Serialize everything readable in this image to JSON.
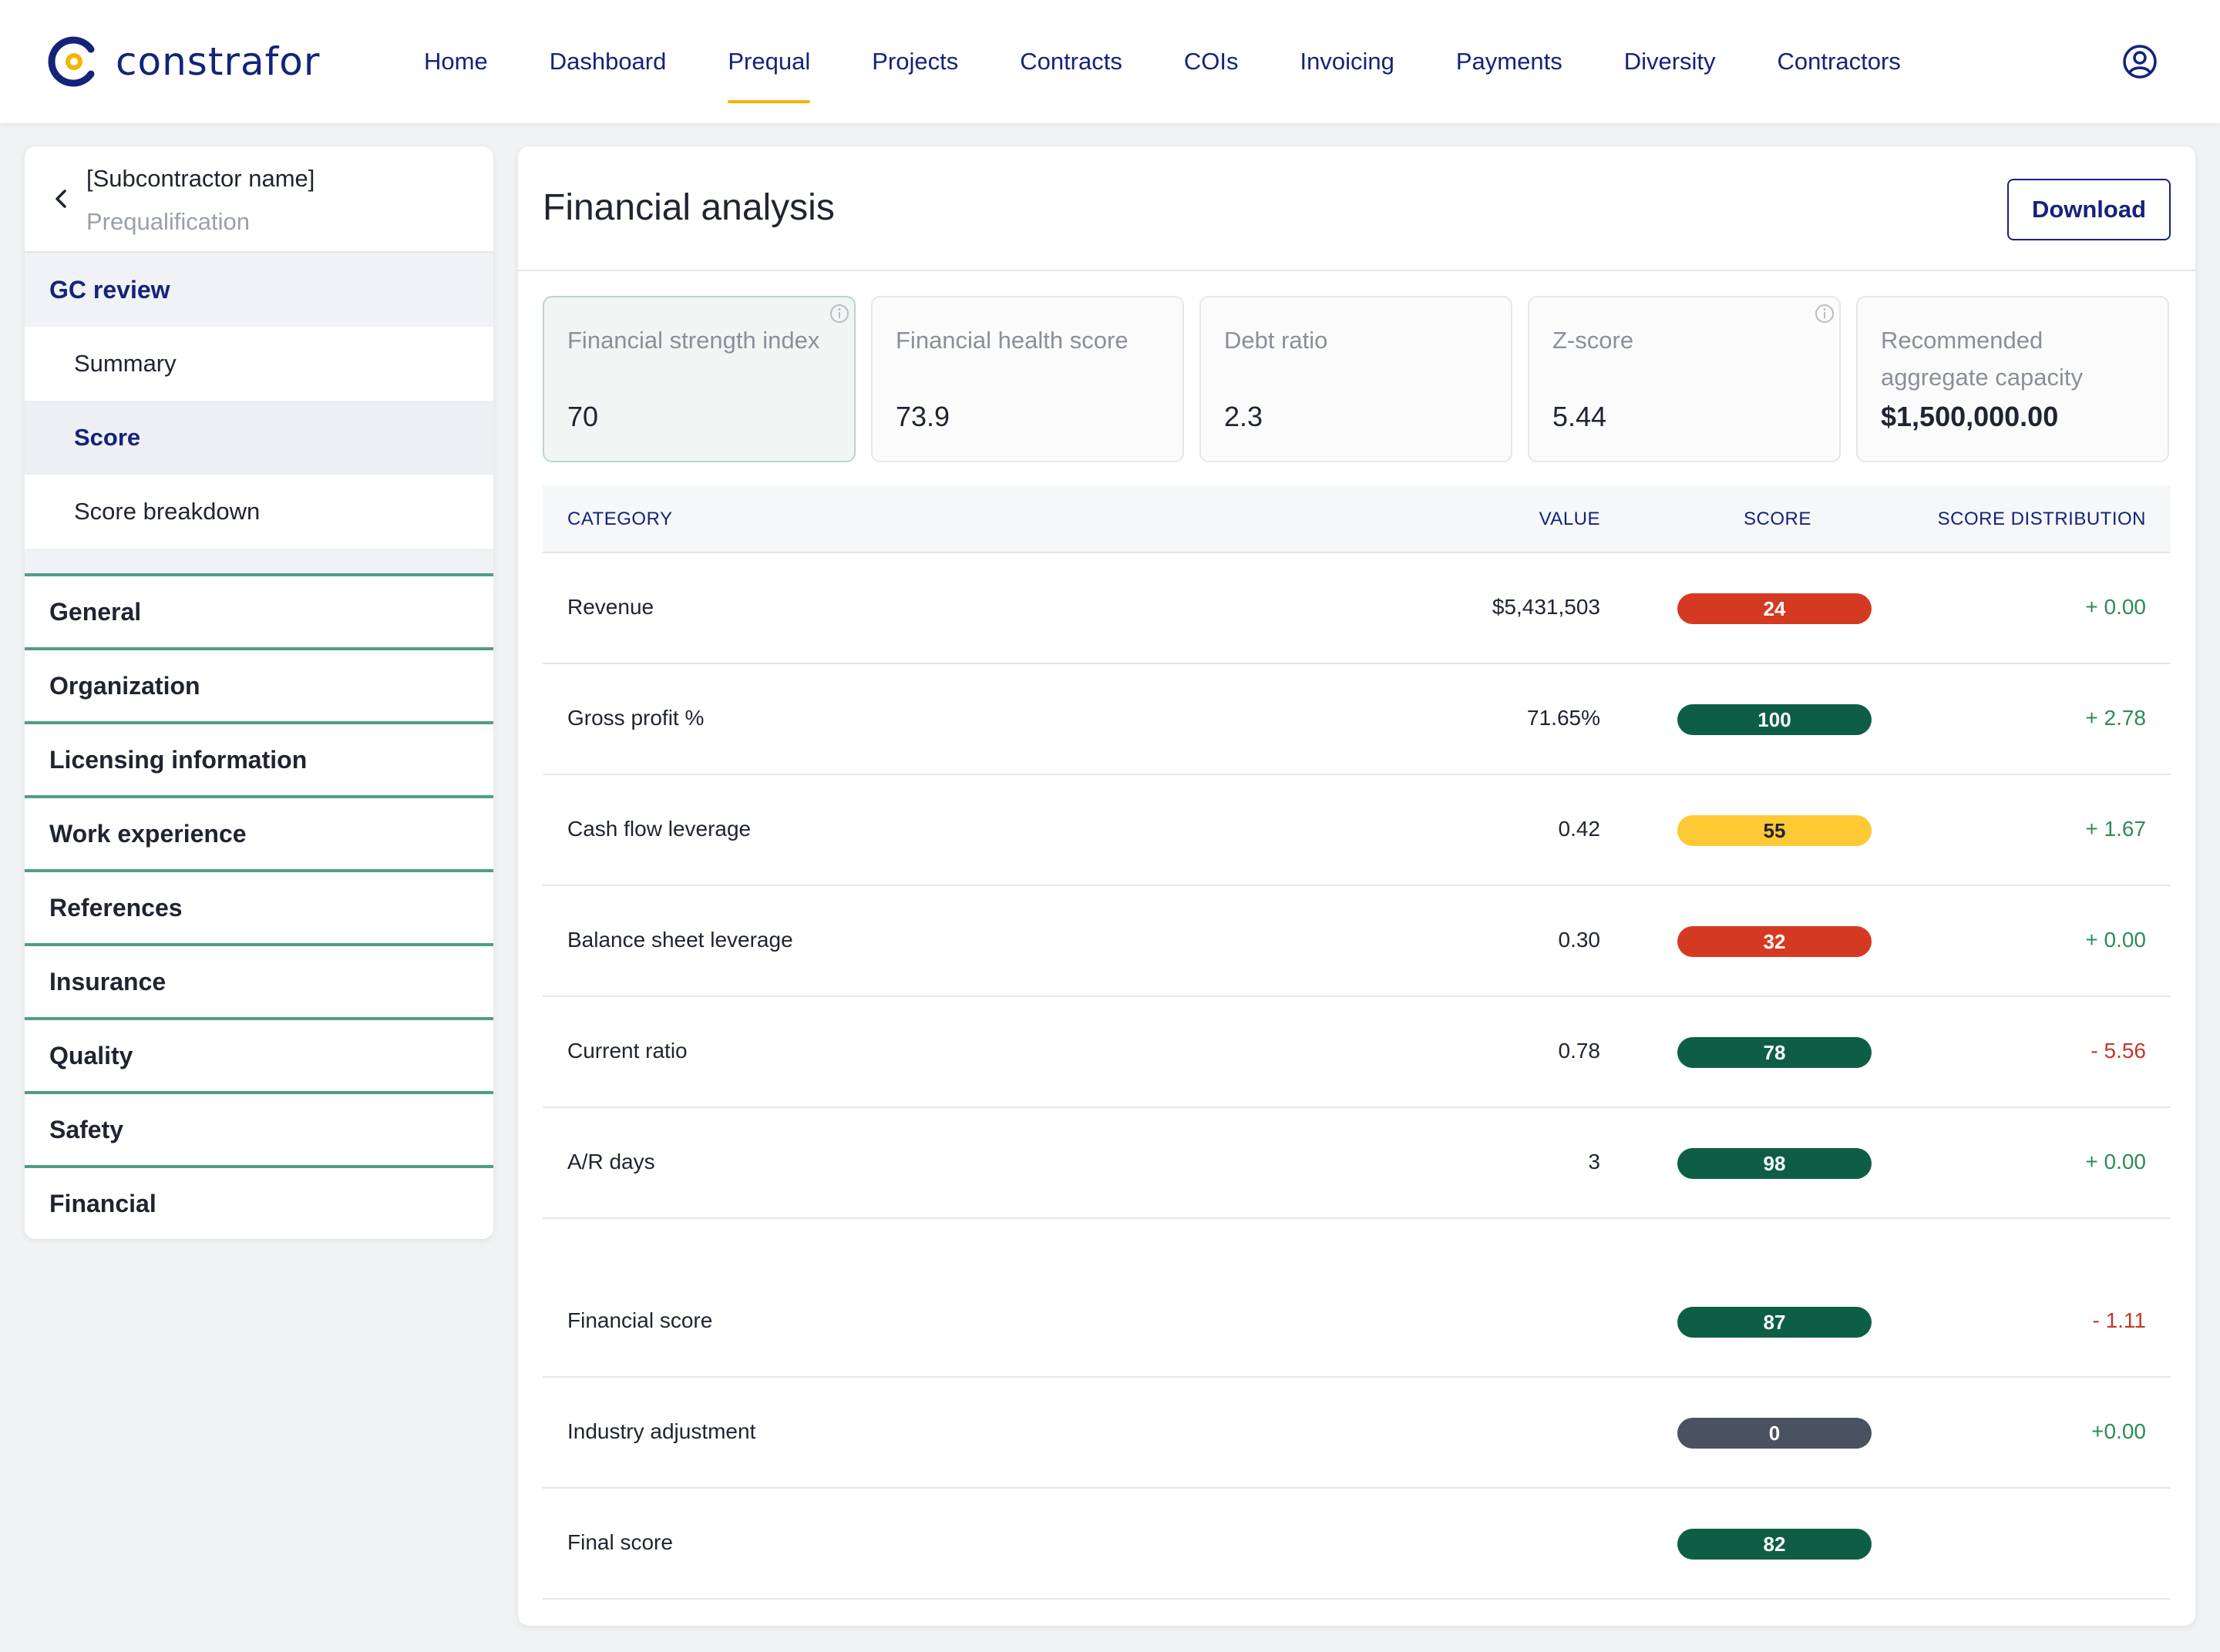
{
  "app": {
    "brand": "constrafor"
  },
  "nav": {
    "items": [
      "Home",
      "Dashboard",
      "Prequal",
      "Projects",
      "Contracts",
      "COIs",
      "Invoicing",
      "Payments",
      "Diversity",
      "Contractors"
    ],
    "active": "Prequal"
  },
  "sidebar": {
    "subcontractor_name": "[Subcontractor name]",
    "caption": "Prequalification",
    "gc_review": "GC review",
    "sub_items": [
      "Summary",
      "Score",
      "Score breakdown"
    ],
    "active_sub_item": "Score",
    "sections": [
      "General",
      "Organization",
      "Licensing information",
      "Work experience",
      "References",
      "Insurance",
      "Quality",
      "Safety",
      "Financial"
    ]
  },
  "main": {
    "title": "Financial analysis",
    "download_label": "Download",
    "metrics": [
      {
        "label": "Financial strength index",
        "value": "70"
      },
      {
        "label": "Financial health score",
        "value": "73.9"
      },
      {
        "label": "Debt ratio",
        "value": "2.3"
      },
      {
        "label": "Z-score",
        "value": "5.44"
      },
      {
        "label": "Recommended aggregate capacity",
        "value": "$1,500,000.00"
      }
    ],
    "table": {
      "headers": {
        "category": "CATEGORY",
        "value": "VALUE",
        "score": "SCORE",
        "distribution": "SCORE DISTRIBUTION"
      },
      "rows": [
        {
          "category": "Revenue",
          "value": "$5,431,503",
          "score": "24",
          "distribution": "+ 0.00"
        },
        {
          "category": "Gross profit %",
          "value": "71.65%",
          "score": "100",
          "distribution": "+ 2.78"
        },
        {
          "category": "Cash flow leverage",
          "value": "0.42",
          "score": "55",
          "distribution": "+ 1.67"
        },
        {
          "category": "Balance sheet leverage",
          "value": "0.30",
          "score": "32",
          "distribution": "+ 0.00"
        },
        {
          "category": "Current ratio",
          "value": "0.78",
          "score": "78",
          "distribution": "- 5.56"
        },
        {
          "category": "A/R days",
          "value": "3",
          "score": "98",
          "distribution": "+ 0.00"
        }
      ],
      "summary_rows": [
        {
          "category": "Financial score",
          "score": "87",
          "distribution": "- 1.11"
        },
        {
          "category": "Industry adjustment",
          "score": "0",
          "distribution": "+0.00"
        },
        {
          "category": "Final score",
          "score": "82",
          "distribution": ""
        }
      ]
    }
  },
  "colors": {
    "brand_navy": "#14237a",
    "accent_yellow": "#f5b400",
    "score_red": "#d43a21",
    "score_green": "#0e5e45",
    "score_yellow": "#fdca35",
    "score_gray": "#4a5261",
    "positive_text": "#2e8b57",
    "negative_text": "#c0392b",
    "section_rule": "#4f9e86"
  },
  "icons": {
    "user": "user-circle-icon",
    "back": "chevron-left-icon",
    "info": "info-icon"
  }
}
